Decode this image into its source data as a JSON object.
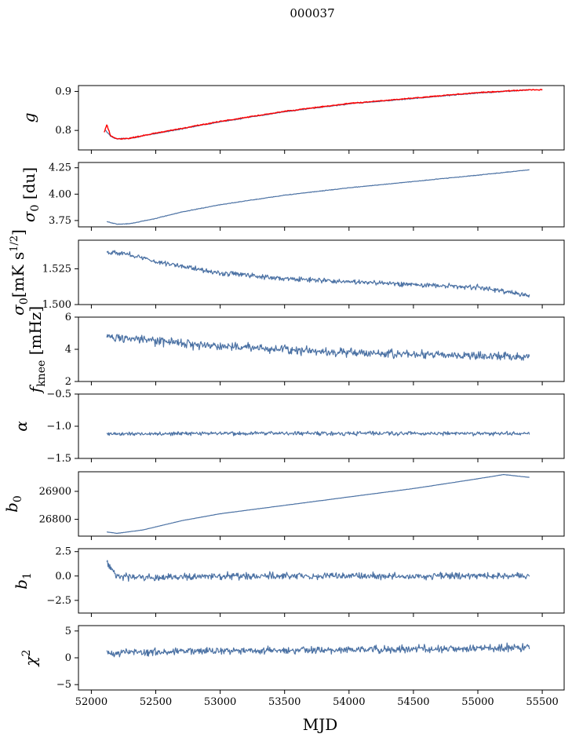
{
  "figure": {
    "title": "000037",
    "xlabel": "MJD"
  },
  "colors": {
    "series": "#4c72a4",
    "overlay": "#ff0000",
    "axes": "#000000",
    "background": "#ffffff"
  },
  "chart_data": [
    {
      "type": "line",
      "ylabel": "g",
      "ylabel_tex": "g",
      "xlim": [
        51900,
        55670
      ],
      "ylim": [
        0.75,
        0.915
      ],
      "yticks": [
        0.8,
        0.9
      ],
      "ytick_labels": [
        "0.8",
        "0.9"
      ],
      "grid": false,
      "series": [
        {
          "color": "#4c72a4",
          "noise": 0.002,
          "points": [
            [
              52110,
              0.8
            ],
            [
              52150,
              0.785
            ],
            [
              52200,
              0.778
            ],
            [
              52300,
              0.78
            ],
            [
              52500,
              0.792
            ],
            [
              53000,
              0.822
            ],
            [
              53500,
              0.848
            ],
            [
              54000,
              0.868
            ],
            [
              54500,
              0.882
            ],
            [
              55000,
              0.896
            ],
            [
              55400,
              0.904
            ]
          ]
        },
        {
          "color": "#ff0000",
          "noise": 0.002,
          "points": [
            [
              52100,
              0.795
            ],
            [
              52120,
              0.815
            ],
            [
              52150,
              0.786
            ],
            [
              52200,
              0.778
            ],
            [
              52300,
              0.78
            ],
            [
              52500,
              0.793
            ],
            [
              53000,
              0.823
            ],
            [
              53500,
              0.849
            ],
            [
              54000,
              0.869
            ],
            [
              54500,
              0.883
            ],
            [
              55000,
              0.897
            ],
            [
              55400,
              0.904
            ],
            [
              55500,
              0.904
            ]
          ]
        }
      ]
    },
    {
      "type": "line",
      "ylabel": "σ0 [du]",
      "ylabel_tex": "sigma0-du",
      "xlim": [
        51900,
        55670
      ],
      "ylim": [
        3.69,
        4.3
      ],
      "yticks": [
        3.75,
        4.0,
        4.25
      ],
      "ytick_labels": [
        "3.75",
        "4.00",
        "4.25"
      ],
      "grid": false,
      "series": [
        {
          "color": "#4c72a4",
          "noise": 0.004,
          "points": [
            [
              52120,
              3.74
            ],
            [
              52200,
              3.715
            ],
            [
              52300,
              3.72
            ],
            [
              52500,
              3.77
            ],
            [
              52700,
              3.83
            ],
            [
              53000,
              3.9
            ],
            [
              53500,
              3.99
            ],
            [
              54000,
              4.06
            ],
            [
              54500,
              4.12
            ],
            [
              55000,
              4.18
            ],
            [
              55400,
              4.23
            ]
          ]
        }
      ]
    },
    {
      "type": "line",
      "ylabel": "σ0[mK s^1/2]",
      "ylabel_tex": "sigma0-mks",
      "xlim": [
        51900,
        55670
      ],
      "ylim": [
        1.5,
        1.545
      ],
      "yticks": [
        1.5,
        1.525
      ],
      "ytick_labels": [
        "1.500",
        "1.525"
      ],
      "grid": false,
      "series": [
        {
          "color": "#4c72a4",
          "noise": 0.0025,
          "points": [
            [
              52120,
              1.537
            ],
            [
              52300,
              1.535
            ],
            [
              52500,
              1.53
            ],
            [
              52700,
              1.527
            ],
            [
              53000,
              1.522
            ],
            [
              53300,
              1.52
            ],
            [
              53500,
              1.518
            ],
            [
              54000,
              1.516
            ],
            [
              54500,
              1.514
            ],
            [
              55000,
              1.512
            ],
            [
              55300,
              1.508
            ],
            [
              55400,
              1.506
            ]
          ]
        }
      ]
    },
    {
      "type": "line",
      "ylabel": "f_knee [mHz]",
      "ylabel_tex": "fknee",
      "xlim": [
        51900,
        55670
      ],
      "ylim": [
        2,
        6
      ],
      "yticks": [
        2,
        4,
        6
      ],
      "ytick_labels": [
        "2",
        "4",
        "6"
      ],
      "grid": false,
      "series": [
        {
          "color": "#4c72a4",
          "noise": 0.4,
          "points": [
            [
              52120,
              4.8
            ],
            [
              52500,
              4.5
            ],
            [
              53000,
              4.2
            ],
            [
              53500,
              4.0
            ],
            [
              54000,
              3.8
            ],
            [
              54500,
              3.7
            ],
            [
              55000,
              3.6
            ],
            [
              55400,
              3.5
            ]
          ]
        }
      ]
    },
    {
      "type": "line",
      "ylabel": "α",
      "ylabel_tex": "alpha",
      "xlim": [
        51900,
        55670
      ],
      "ylim": [
        -1.5,
        -0.5
      ],
      "yticks": [
        -1.5,
        -1.0,
        -0.5
      ],
      "ytick_labels": [
        "−1.5",
        "−1.0",
        "−0.5"
      ],
      "grid": false,
      "series": [
        {
          "color": "#4c72a4",
          "noise": 0.045,
          "points": [
            [
              52120,
              -1.12
            ],
            [
              53000,
              -1.11
            ],
            [
              54000,
              -1.11
            ],
            [
              55000,
              -1.11
            ],
            [
              55400,
              -1.12
            ]
          ]
        }
      ]
    },
    {
      "type": "line",
      "ylabel": "b0",
      "ylabel_tex": "b0",
      "xlim": [
        51900,
        55670
      ],
      "ylim": [
        26740,
        26970
      ],
      "yticks": [
        26800,
        26900
      ],
      "ytick_labels": [
        "26800",
        "26900"
      ],
      "grid": false,
      "series": [
        {
          "color": "#4c72a4",
          "noise": 0.6,
          "points": [
            [
              52120,
              26755
            ],
            [
              52200,
              26750
            ],
            [
              52400,
              26762
            ],
            [
              52700,
              26795
            ],
            [
              53000,
              26820
            ],
            [
              53500,
              26850
            ],
            [
              54000,
              26880
            ],
            [
              54500,
              26910
            ],
            [
              55000,
              26945
            ],
            [
              55200,
              26960
            ],
            [
              55400,
              26950
            ]
          ]
        }
      ]
    },
    {
      "type": "line",
      "ylabel": "b1",
      "ylabel_tex": "b1",
      "xlim": [
        51900,
        55670
      ],
      "ylim": [
        -3.8,
        2.8
      ],
      "yticks": [
        -2.5,
        0.0,
        2.5
      ],
      "ytick_labels": [
        "−2.5",
        "0.0",
        "2.5"
      ],
      "grid": false,
      "series": [
        {
          "color": "#4c72a4",
          "noise": 0.5,
          "points": [
            [
              52120,
              1.5
            ],
            [
              52200,
              0.0
            ],
            [
              52500,
              -0.2
            ],
            [
              53000,
              0.0
            ],
            [
              54000,
              0.0
            ],
            [
              55000,
              0.0
            ],
            [
              55400,
              0.0
            ]
          ]
        }
      ]
    },
    {
      "type": "line",
      "ylabel": "χ2",
      "ylabel_tex": "chi2",
      "xlim": [
        51900,
        55670
      ],
      "ylim": [
        -6,
        6
      ],
      "yticks": [
        -5,
        0,
        5
      ],
      "ytick_labels": [
        "−5",
        "0",
        "5"
      ],
      "xticks": [
        52000,
        52500,
        53000,
        53500,
        54000,
        54500,
        55000,
        55500
      ],
      "xtick_labels": [
        "52000",
        "52500",
        "53000",
        "53500",
        "54000",
        "54500",
        "55000",
        "55500"
      ],
      "grid": false,
      "series": [
        {
          "color": "#4c72a4",
          "noise": 1.0,
          "points": [
            [
              52120,
              1.0
            ],
            [
              53000,
              1.3
            ],
            [
              54000,
              1.5
            ],
            [
              55000,
              1.7
            ],
            [
              55400,
              2.0
            ]
          ]
        }
      ]
    }
  ]
}
